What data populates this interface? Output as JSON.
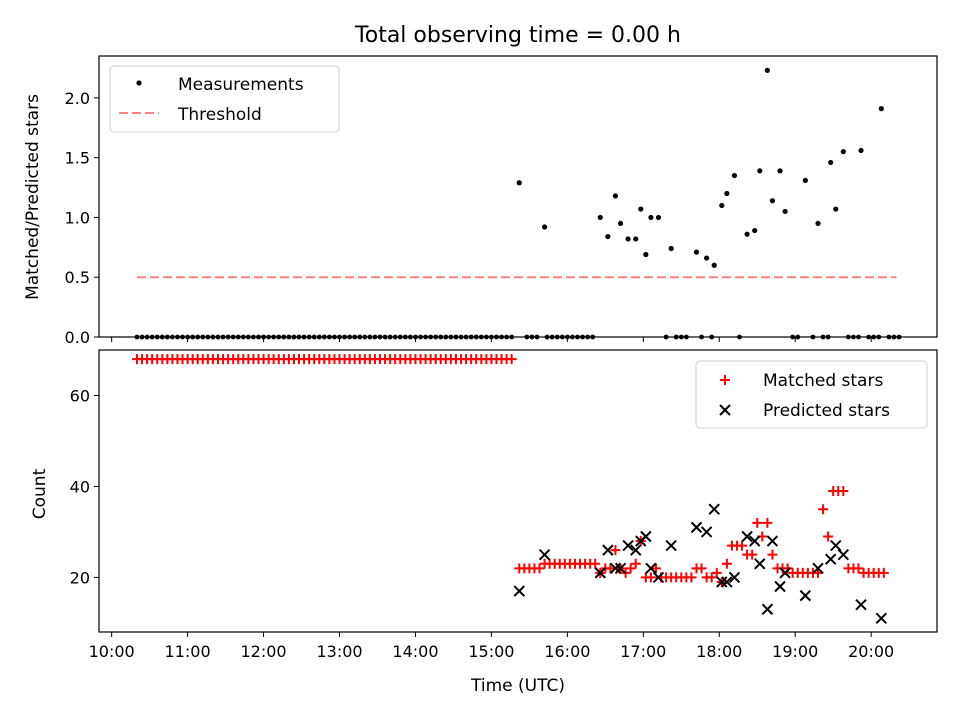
{
  "title": "Total observing time = 0.00 h",
  "chart_data": [
    {
      "type": "scatter",
      "ylabel": "Matched/Predicted stars",
      "ylim": [
        0,
        2.35
      ],
      "yticks": [
        "0.0",
        "0.5",
        "1.0",
        "1.5",
        "2.0"
      ],
      "ytick_values": [
        0,
        0.5,
        1.0,
        1.5,
        2.0
      ],
      "legend": {
        "placement": "top-left",
        "entries": [
          "Measurements",
          "Threshold"
        ]
      },
      "threshold": {
        "value": 0.5,
        "x_start": "10:20",
        "x_end": "20:20",
        "color": "#ff8080"
      },
      "series": [
        {
          "name": "Measurements",
          "color": "#000000",
          "zero_times": [
            "10:20",
            "10:24",
            "10:28",
            "10:32",
            "10:36",
            "10:40",
            "10:44",
            "10:48",
            "10:52",
            "10:56",
            "11:00",
            "11:04",
            "11:08",
            "11:12",
            "11:16",
            "11:20",
            "11:24",
            "11:28",
            "11:32",
            "11:36",
            "11:40",
            "11:44",
            "11:48",
            "11:52",
            "11:56",
            "12:00",
            "12:04",
            "12:08",
            "12:12",
            "12:16",
            "12:20",
            "12:24",
            "12:28",
            "12:32",
            "12:36",
            "12:40",
            "12:44",
            "12:48",
            "12:52",
            "12:56",
            "13:00",
            "13:04",
            "13:08",
            "13:12",
            "13:16",
            "13:20",
            "13:24",
            "13:28",
            "13:32",
            "13:36",
            "13:40",
            "13:44",
            "13:48",
            "13:52",
            "13:56",
            "14:00",
            "14:04",
            "14:08",
            "14:12",
            "14:16",
            "14:20",
            "14:24",
            "14:28",
            "14:32",
            "14:36",
            "14:40",
            "14:44",
            "14:48",
            "14:52",
            "14:56",
            "15:00",
            "15:04",
            "15:08",
            "15:12",
            "15:16",
            "15:28",
            "15:32",
            "15:36",
            "15:44",
            "15:48",
            "15:52",
            "15:56",
            "16:00",
            "16:04",
            "16:08",
            "16:12",
            "16:16",
            "16:20",
            "17:18",
            "17:26",
            "17:30",
            "17:34",
            "17:46",
            "17:54",
            "18:16",
            "18:58",
            "19:02",
            "19:14",
            "19:22",
            "19:26",
            "19:42",
            "19:46",
            "19:50",
            "19:58",
            "20:02",
            "20:06",
            "20:14",
            "20:18",
            "20:22"
          ],
          "points": [
            [
              "15:22",
              1.29
            ],
            [
              "15:42",
              0.92
            ],
            [
              "16:26",
              1.0
            ],
            [
              "16:32",
              0.84
            ],
            [
              "16:38",
              1.18
            ],
            [
              "16:42",
              0.95
            ],
            [
              "16:48",
              0.82
            ],
            [
              "16:54",
              0.82
            ],
            [
              "16:58",
              1.07
            ],
            [
              "17:02",
              0.69
            ],
            [
              "17:06",
              1.0
            ],
            [
              "17:12",
              1.0
            ],
            [
              "17:22",
              0.74
            ],
            [
              "17:42",
              0.71
            ],
            [
              "17:50",
              0.66
            ],
            [
              "17:56",
              0.6
            ],
            [
              "18:02",
              1.1
            ],
            [
              "18:06",
              1.2
            ],
            [
              "18:12",
              1.35
            ],
            [
              "18:22",
              0.86
            ],
            [
              "18:28",
              0.89
            ],
            [
              "18:32",
              1.39
            ],
            [
              "18:38",
              2.23
            ],
            [
              "18:42",
              1.14
            ],
            [
              "18:48",
              1.39
            ],
            [
              "18:52",
              1.05
            ],
            [
              "19:08",
              1.31
            ],
            [
              "19:18",
              0.95
            ],
            [
              "19:28",
              1.46
            ],
            [
              "19:32",
              1.07
            ],
            [
              "19:38",
              1.55
            ],
            [
              "19:52",
              1.56
            ],
            [
              "20:08",
              1.91
            ]
          ]
        }
      ]
    },
    {
      "type": "scatter",
      "xlabel": "Time (UTC)",
      "ylabel": "Count",
      "ylim": [
        8,
        70
      ],
      "yticks": [
        "20",
        "40",
        "60"
      ],
      "ytick_values": [
        20,
        40,
        60
      ],
      "xticks": [
        "10:00",
        "11:00",
        "12:00",
        "13:00",
        "14:00",
        "15:00",
        "16:00",
        "17:00",
        "18:00",
        "19:00",
        "20:00"
      ],
      "legend": {
        "placement": "top-right",
        "entries": [
          "Matched stars",
          "Predicted stars"
        ]
      },
      "series": [
        {
          "name": "Matched stars",
          "color": "#ff0000",
          "marker": "plus",
          "const_run": {
            "from": "10:20",
            "to": "15:16",
            "step_minutes": 4,
            "value": 68
          },
          "points": [
            [
              "15:22",
              22
            ],
            [
              "15:26",
              22
            ],
            [
              "15:30",
              22
            ],
            [
              "15:34",
              22
            ],
            [
              "15:38",
              22
            ],
            [
              "15:42",
              23
            ],
            [
              "15:46",
              23
            ],
            [
              "15:50",
              23
            ],
            [
              "15:54",
              23
            ],
            [
              "15:58",
              23
            ],
            [
              "16:02",
              23
            ],
            [
              "16:06",
              23
            ],
            [
              "16:10",
              23
            ],
            [
              "16:14",
              23
            ],
            [
              "16:18",
              23
            ],
            [
              "16:22",
              23
            ],
            [
              "16:26",
              21
            ],
            [
              "16:30",
              22
            ],
            [
              "16:34",
              22
            ],
            [
              "16:38",
              26
            ],
            [
              "16:42",
              22
            ],
            [
              "16:46",
              21
            ],
            [
              "16:50",
              22
            ],
            [
              "16:54",
              23
            ],
            [
              "16:58",
              28
            ],
            [
              "17:02",
              20
            ],
            [
              "17:06",
              20
            ],
            [
              "17:10",
              22
            ],
            [
              "17:14",
              20
            ],
            [
              "17:18",
              20
            ],
            [
              "17:22",
              20
            ],
            [
              "17:26",
              20
            ],
            [
              "17:30",
              20
            ],
            [
              "17:34",
              20
            ],
            [
              "17:38",
              20
            ],
            [
              "17:42",
              22
            ],
            [
              "17:46",
              22
            ],
            [
              "17:50",
              20
            ],
            [
              "17:54",
              20
            ],
            [
              "17:58",
              21
            ],
            [
              "18:02",
              19
            ],
            [
              "18:06",
              23
            ],
            [
              "18:10",
              27
            ],
            [
              "18:14",
              27
            ],
            [
              "18:18",
              27
            ],
            [
              "18:22",
              25
            ],
            [
              "18:26",
              25
            ],
            [
              "18:30",
              32
            ],
            [
              "18:34",
              29
            ],
            [
              "18:38",
              32
            ],
            [
              "18:42",
              25
            ],
            [
              "18:46",
              22
            ],
            [
              "18:50",
              22
            ],
            [
              "18:54",
              22
            ],
            [
              "18:58",
              21
            ],
            [
              "19:02",
              21
            ],
            [
              "19:06",
              21
            ],
            [
              "19:10",
              21
            ],
            [
              "19:14",
              21
            ],
            [
              "19:18",
              21
            ],
            [
              "19:22",
              35
            ],
            [
              "19:26",
              29
            ],
            [
              "19:30",
              39
            ],
            [
              "19:34",
              39
            ],
            [
              "19:38",
              39
            ],
            [
              "19:42",
              22
            ],
            [
              "19:46",
              22
            ],
            [
              "19:50",
              22
            ],
            [
              "19:54",
              21
            ],
            [
              "19:58",
              21
            ],
            [
              "20:02",
              21
            ],
            [
              "20:06",
              21
            ],
            [
              "20:10",
              21
            ]
          ]
        },
        {
          "name": "Predicted stars",
          "color": "#000000",
          "marker": "x",
          "points": [
            [
              "15:22",
              17
            ],
            [
              "15:42",
              25
            ],
            [
              "16:26",
              21
            ],
            [
              "16:32",
              26
            ],
            [
              "16:38",
              22
            ],
            [
              "16:42",
              22
            ],
            [
              "16:48",
              27
            ],
            [
              "16:54",
              26
            ],
            [
              "16:58",
              28
            ],
            [
              "17:02",
              29
            ],
            [
              "17:06",
              22
            ],
            [
              "17:12",
              20
            ],
            [
              "17:22",
              27
            ],
            [
              "17:42",
              31
            ],
            [
              "17:50",
              30
            ],
            [
              "17:56",
              35
            ],
            [
              "18:02",
              19
            ],
            [
              "18:06",
              19
            ],
            [
              "18:12",
              20
            ],
            [
              "18:22",
              29
            ],
            [
              "18:28",
              28
            ],
            [
              "18:32",
              23
            ],
            [
              "18:38",
              13
            ],
            [
              "18:42",
              28
            ],
            [
              "18:48",
              18
            ],
            [
              "18:52",
              21
            ],
            [
              "19:08",
              16
            ],
            [
              "19:18",
              22
            ],
            [
              "19:28",
              24
            ],
            [
              "19:32",
              27
            ],
            [
              "19:38",
              25
            ],
            [
              "19:52",
              14
            ],
            [
              "20:08",
              11
            ]
          ]
        }
      ]
    }
  ]
}
